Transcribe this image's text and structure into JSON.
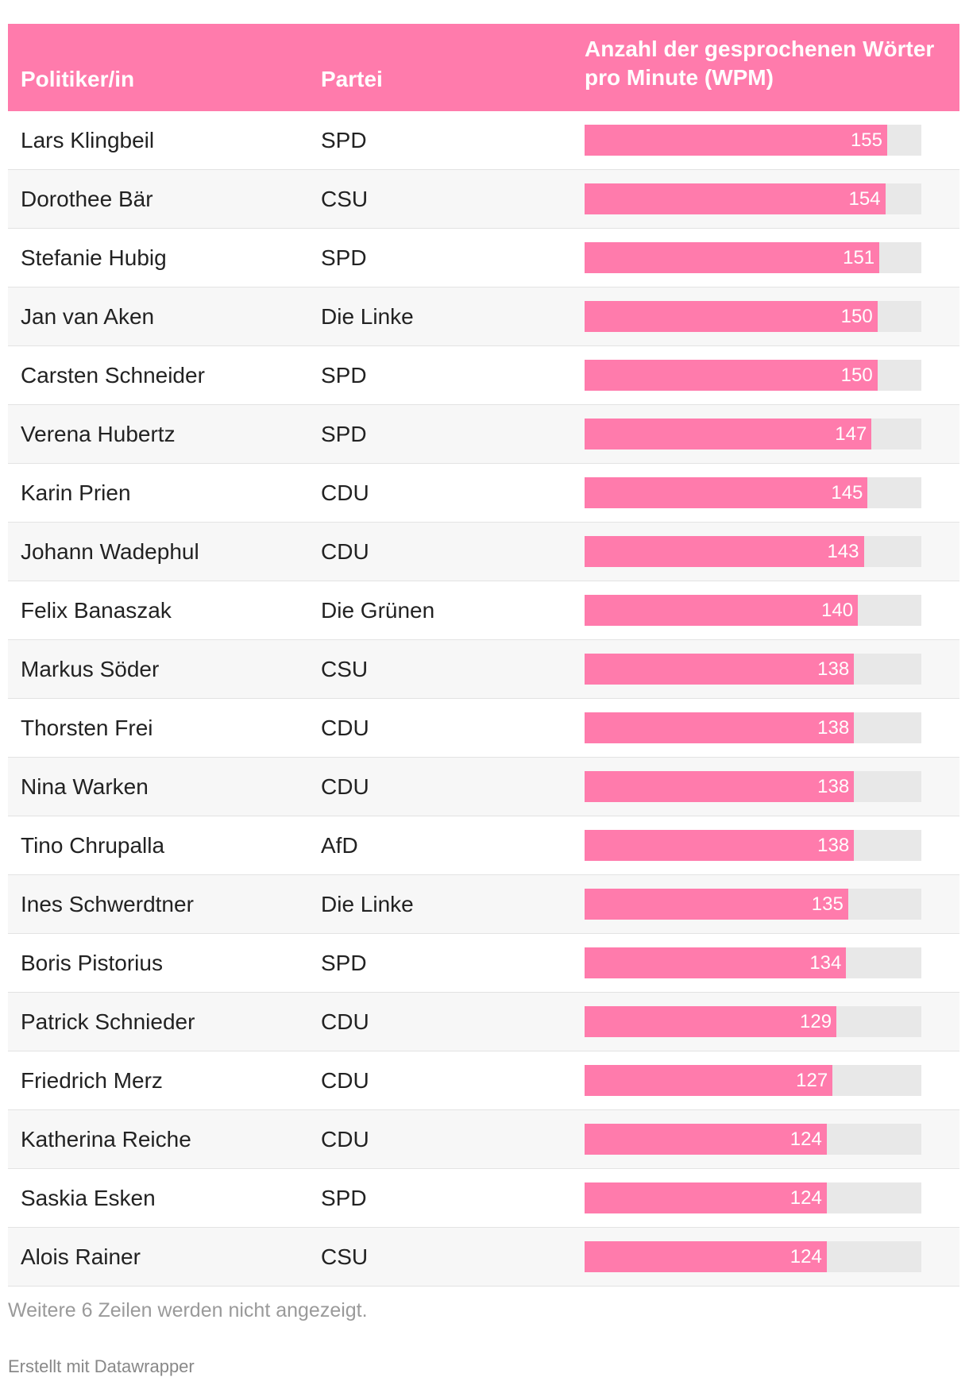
{
  "table": {
    "headers": {
      "name": "Politiker/in",
      "party": "Partei",
      "wpm": "Anzahl der gesprochenen Wörter pro Minute (WPM)"
    }
  },
  "chart_data": {
    "type": "table",
    "columns": [
      "Politiker/in",
      "Partei",
      "Anzahl der gesprochenen Wörter pro Minute (WPM)"
    ],
    "xlim": [
      0,
      155
    ],
    "rows": [
      {
        "name": "Lars Klingbeil",
        "party": "SPD",
        "wpm": 155
      },
      {
        "name": "Dorothee Bär",
        "party": "CSU",
        "wpm": 154
      },
      {
        "name": "Stefanie Hubig",
        "party": "SPD",
        "wpm": 151
      },
      {
        "name": "Jan van Aken",
        "party": "Die Linke",
        "wpm": 150
      },
      {
        "name": "Carsten Schneider",
        "party": "SPD",
        "wpm": 150
      },
      {
        "name": "Verena Hubertz",
        "party": "SPD",
        "wpm": 147
      },
      {
        "name": "Karin Prien",
        "party": "CDU",
        "wpm": 145
      },
      {
        "name": "Johann Wadephul",
        "party": "CDU",
        "wpm": 143
      },
      {
        "name": "Felix Banaszak",
        "party": "Die Grünen",
        "wpm": 140
      },
      {
        "name": "Markus Söder",
        "party": "CSU",
        "wpm": 138
      },
      {
        "name": "Thorsten Frei",
        "party": "CDU",
        "wpm": 138
      },
      {
        "name": "Nina Warken",
        "party": "CDU",
        "wpm": 138
      },
      {
        "name": "Tino Chrupalla",
        "party": "AfD",
        "wpm": 138
      },
      {
        "name": "Ines Schwerdtner",
        "party": "Die Linke",
        "wpm": 135
      },
      {
        "name": "Boris Pistorius",
        "party": "SPD",
        "wpm": 134
      },
      {
        "name": "Patrick Schnieder",
        "party": "CDU",
        "wpm": 129
      },
      {
        "name": "Friedrich Merz",
        "party": "CDU",
        "wpm": 127
      },
      {
        "name": "Katherina Reiche",
        "party": "CDU",
        "wpm": 124
      },
      {
        "name": "Saskia Esken",
        "party": "SPD",
        "wpm": 124
      },
      {
        "name": "Alois Rainer",
        "party": "CSU",
        "wpm": 124
      }
    ]
  },
  "colors": {
    "accent": "#ff7bac",
    "bar_track": "#e8e8e8"
  },
  "footer": {
    "notes": "Weitere 6 Zeilen werden nicht angezeigt.",
    "credit": "Erstellt mit Datawrapper"
  }
}
